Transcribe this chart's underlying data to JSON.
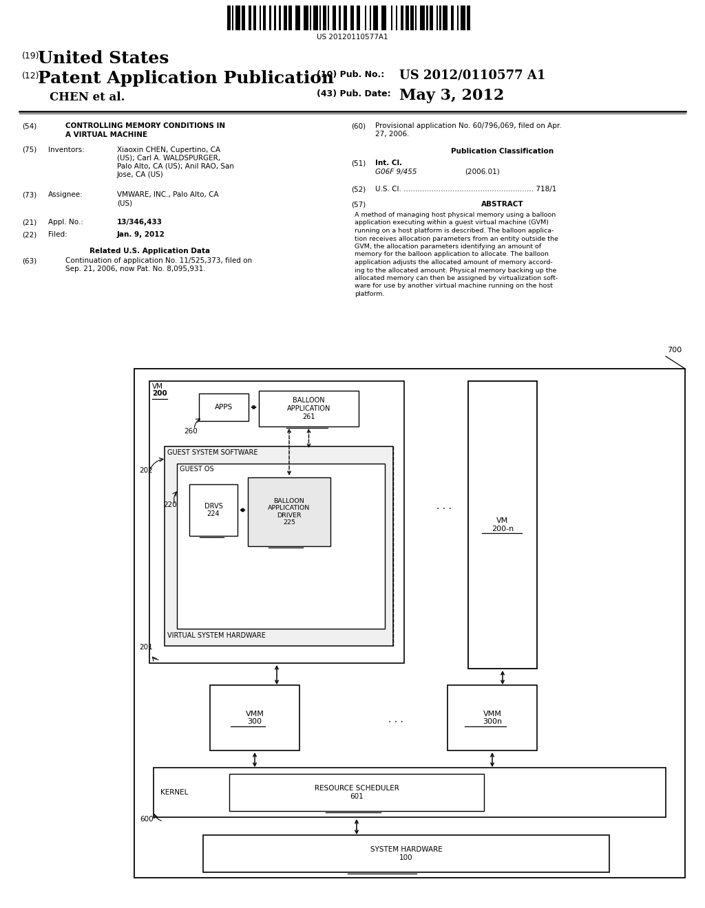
{
  "bg_color": "#ffffff",
  "title_line1_num": "(19)",
  "title_line1_text": "United States",
  "title_line2_num": "(12)",
  "title_line2_text": "Patent Application Publication",
  "pub_no_label": "(10) Pub. No.:",
  "pub_no_value": "US 2012/0110577 A1",
  "pub_date_label": "(43) Pub. Date:",
  "pub_date_value": "May 3, 2012",
  "author": "CHEN et al.",
  "barcode_text": "US 20120110577A1",
  "f54_num": "(54)",
  "f54_text1": "CONTROLLING MEMORY CONDITIONS IN",
  "f54_text2": "A VIRTUAL MACHINE",
  "f75_num": "(75)",
  "f75_label": "Inventors:",
  "f75_value": "Xiaoxin CHEN, Cupertino, CA\n(US); Carl A. WALDSPURGER,\nPalo Alto, CA (US); Anil RAO, San\nJose, CA (US)",
  "f73_num": "(73)",
  "f73_label": "Assignee:",
  "f73_value": "VMWARE, INC., Palo Alto, CA\n(US)",
  "f21_num": "(21)",
  "f21_label": "Appl. No.:",
  "f21_value": "13/346,433",
  "f22_num": "(22)",
  "f22_label": "Filed:",
  "f22_value": "Jan. 9, 2012",
  "field_related": "Related U.S. Application Data",
  "f63_num": "(63)",
  "f63_value": "Continuation of application No. 11/525,373, filed on\nSep. 21, 2006, now Pat. No. 8,095,931.",
  "f60_num": "(60)",
  "f60_value": "Provisional application No. 60/796,069, filed on Apr.\n27, 2006.",
  "pub_class_title": "Publication Classification",
  "f51_num": "(51)",
  "f51_label": "Int. Cl.",
  "f51_class": "G06F 9/455",
  "f51_year": "(2006.01)",
  "f52_num": "(52)",
  "f52_text": "U.S. Cl. ........................................................ 718/1",
  "f57_num": "(57)",
  "abstract_title": "ABSTRACT",
  "abstract_text": "A method of managing host physical memory using a balloon\napplication executing within a guest virtual machine (GVM)\nrunning on a host platform is described. The balloon applica-\ntion receives allocation parameters from an entity outside the\nGVM, the allocation parameters identifying an amount of\nmemory for the balloon application to allocate. The balloon\napplication adjusts the allocated amount of memory accord-\ning to the allocated amount. Physical memory backing up the\nallocated memory can then be assigned by virtualization soft-\nware for use by another virtual machine running on the host\nplatform.",
  "diagram_ref": "700",
  "vm_label": "VM",
  "vm_num": "200",
  "apps_label": "APPS",
  "balloon_app_label": "BALLOON\nAPPLICATION\n261",
  "ref260": "260",
  "guest_sw_label": "GUEST SYSTEM SOFTWARE",
  "ref202": "202",
  "guest_os_label": "GUEST OS",
  "drvs_label": "DRVS\n224",
  "ref220": "220",
  "balloon_driver_label": "BALLOON\nAPPLICATION\nDRIVER\n225",
  "vsh_label": "VIRTUAL SYSTEM HARDWARE",
  "ref201": "201",
  "dots": ". . .",
  "vm_n_label": "VM\n200-n",
  "vmm_label": "VMM\n300",
  "vmm_n_label": "VMM\n300n",
  "kernel_label": "KERNEL",
  "ref600": "600",
  "resource_sched_label": "RESOURCE SCHEDULER\n601",
  "system_hw_label": "SYSTEM HARDWARE\n100"
}
